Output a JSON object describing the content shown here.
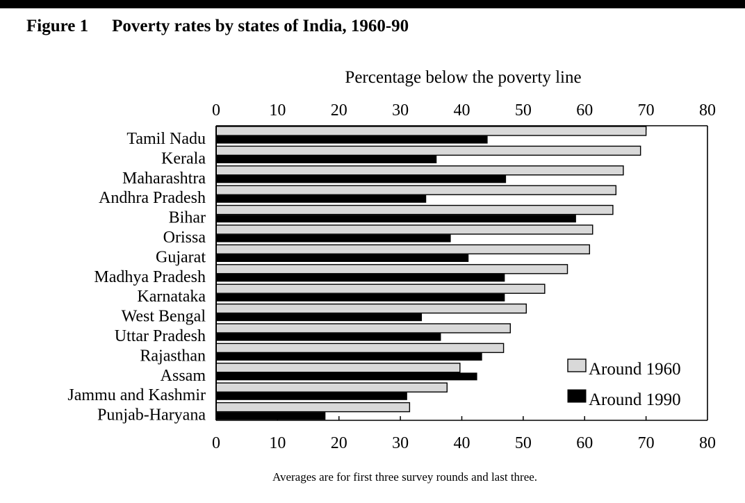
{
  "figure": {
    "number_label": "Figure 1",
    "title": "Poverty rates by states of India, 1960-90",
    "caption": "Averages are for first three survey rounds and last three."
  },
  "colors": {
    "series_1960": "#d9d9d9",
    "series_1990": "#000000",
    "frame": "#000000",
    "background": "#ffffff"
  },
  "chart_data": {
    "type": "bar",
    "orientation": "horizontal",
    "title": "Poverty rates by states of India, 1960-90",
    "xlabel": "Percentage below the poverty line",
    "ylabel": "",
    "xlim": [
      0,
      80
    ],
    "xticks": [
      0,
      10,
      20,
      30,
      40,
      50,
      60,
      70,
      80
    ],
    "axis_position": "top and bottom",
    "grid": false,
    "legend_position": "bottom-right",
    "categories": [
      "Tamil Nadu",
      "Kerala",
      "Maharashtra",
      "Andhra Pradesh",
      "Bihar",
      "Orissa",
      "Gujarat",
      "Madhya Pradesh",
      "Karnataka",
      "West Bengal",
      "Uttar Pradesh",
      "Rajasthan",
      "Assam",
      "Jammu and Kashmir",
      "Punjab-Haryana"
    ],
    "series": [
      {
        "name": "Around 1960",
        "values": [
          70.0,
          69.1,
          66.3,
          65.1,
          64.6,
          61.3,
          60.8,
          57.2,
          53.5,
          50.5,
          47.9,
          46.8,
          39.7,
          37.6,
          31.5
        ]
      },
      {
        "name": "Around 1990",
        "values": [
          44.2,
          35.9,
          47.2,
          34.2,
          58.6,
          38.2,
          41.1,
          47.0,
          47.0,
          33.5,
          36.6,
          43.3,
          42.5,
          31.1,
          17.8
        ]
      }
    ]
  }
}
